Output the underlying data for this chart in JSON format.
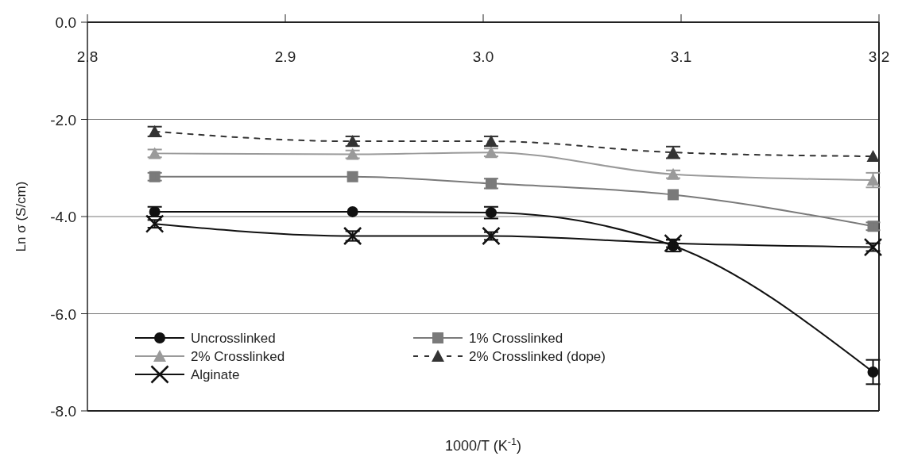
{
  "chart_data": {
    "type": "line",
    "xlabel": "1000/T (K$^{-1}$)",
    "ylabel": "Ln σ (S/cm)",
    "xlim": [
      2.8,
      3.2
    ],
    "xticks": [
      {
        "value": 2.8,
        "label": "2.8"
      },
      {
        "value": 2.9,
        "label": "2.9"
      },
      {
        "value": 3.0,
        "label": "3.0"
      },
      {
        "value": 3.1,
        "label": "3.1"
      },
      {
        "value": 3.2,
        "label": "3.2"
      }
    ],
    "ylim": [
      -8,
      0
    ],
    "yticks": [
      {
        "value": -8,
        "label": "-8.0"
      },
      {
        "value": -6,
        "label": "-6.0"
      },
      {
        "value": -4,
        "label": "-4.0"
      },
      {
        "value": -2,
        "label": "-2.0"
      },
      {
        "value": 0,
        "label": "0.0"
      }
    ],
    "grid": "y",
    "legend": "bottom left",
    "x": [
      2.834,
      2.934,
      3.004,
      3.096,
      3.197
    ],
    "series": [
      {
        "name": "Uncrosslinked",
        "color": "#111111",
        "marker": "circle",
        "line_style": "solid",
        "values": [
          -3.9,
          -3.9,
          -3.92,
          -4.6,
          -7.2
        ],
        "errors": [
          0.1,
          null,
          0.12,
          0.12,
          0.25
        ]
      },
      {
        "name": "1% Crosslinked",
        "color": "#7a7a7a",
        "marker": "square",
        "line_style": "solid",
        "values": [
          -3.18,
          -3.18,
          -3.32,
          -3.55,
          -4.2
        ],
        "errors": [
          0.08,
          null,
          0.1,
          null,
          0.08
        ]
      },
      {
        "name": "2% Crosslinked",
        "color": "#9a9a9a",
        "marker": "triangle",
        "line_style": "solid",
        "values": [
          -2.7,
          -2.72,
          -2.68,
          -3.13,
          -3.25
        ],
        "errors": [
          0.08,
          0.08,
          0.08,
          0.08,
          0.15
        ]
      },
      {
        "name": "2% Crosslinked (dope)",
        "color": "#333333",
        "marker": "triangle",
        "line_style": "dashed",
        "values": [
          -2.25,
          -2.45,
          -2.45,
          -2.68,
          -2.76
        ],
        "errors": [
          0.1,
          0.1,
          0.1,
          0.12,
          null
        ]
      },
      {
        "name": "Alginate",
        "color": "#111111",
        "marker": "cross",
        "line_style": "solid",
        "values": [
          -4.15,
          -4.4,
          -4.4,
          -4.55,
          -4.63
        ],
        "errors": [
          0.08,
          0.1,
          0.08,
          0.08,
          0.08
        ]
      }
    ]
  }
}
